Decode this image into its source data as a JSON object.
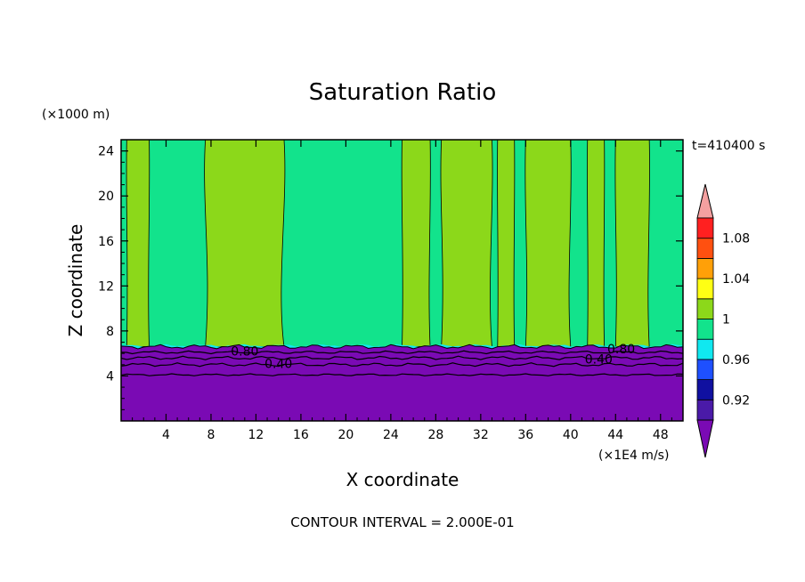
{
  "chart_data": {
    "type": "heatmap",
    "title": "Saturation Ratio",
    "xlabel": "X coordinate",
    "ylabel": "Z coordinate",
    "x_unit": "(×1E4 m/s)",
    "y_unit": "(×1000 m)",
    "time_label": "t=410400 s",
    "contour_interval": "CONTOUR INTERVAL = 2.000E-01",
    "xlim": [
      0,
      50
    ],
    "ylim": [
      0,
      25
    ],
    "x_ticks": [
      "4",
      "8",
      "12",
      "16",
      "20",
      "24",
      "28",
      "32",
      "36",
      "40",
      "44",
      "48"
    ],
    "y_ticks": [
      "4",
      "8",
      "12",
      "16",
      "20",
      "24"
    ],
    "colorbar": {
      "labels": [
        "1.08",
        "1.04",
        "1",
        "0.96",
        "0.92"
      ],
      "levels": [
        {
          "range": "<0.90",
          "color": "#7a0ab4"
        },
        {
          "range": "0.90-0.92",
          "color": "#4a1aa8"
        },
        {
          "range": "0.92-0.94",
          "color": "#1010a0"
        },
        {
          "range": "0.94-0.96",
          "color": "#1e50ff"
        },
        {
          "range": "0.96-0.98",
          "color": "#10e8f0"
        },
        {
          "range": "0.98-1.00",
          "color": "#12e38c"
        },
        {
          "range": "1.00-1.02",
          "color": "#8cd81a"
        },
        {
          "range": "1.02-1.04",
          "color": "#ffff14"
        },
        {
          "range": "1.04-1.06",
          "color": "#ffa008"
        },
        {
          "range": "1.06-1.08",
          "color": "#ff5010"
        },
        {
          "range": "1.08-1.10",
          "color": "#ff2020"
        },
        {
          "range": ">1.10",
          "color": "#f4a0a0"
        }
      ]
    },
    "contour_labels": [
      {
        "text": "0.80",
        "x": 11,
        "z": 6.2
      },
      {
        "text": "0.40",
        "x": 14,
        "z": 5.1
      },
      {
        "text": "0.80",
        "x": 44.5,
        "z": 6.4
      },
      {
        "text": "0.40",
        "x": 42.5,
        "z": 5.5
      }
    ],
    "regions": {
      "lower_dry_layer_top_z": 6.6,
      "band_intervals_x_ratio_above_1": [
        [
          0.5,
          2.5
        ],
        [
          7.5,
          14.5
        ],
        [
          25,
          27.5
        ],
        [
          28.5,
          33
        ],
        [
          33.5,
          35
        ],
        [
          36,
          40
        ],
        [
          41.5,
          43
        ],
        [
          44,
          47
        ]
      ]
    }
  }
}
